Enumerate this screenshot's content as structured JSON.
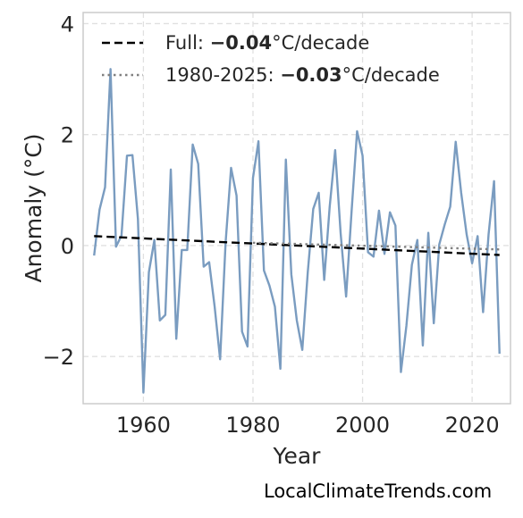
{
  "chart_data": {
    "type": "line",
    "xlabel": "Year",
    "ylabel": "Anomaly (°C)",
    "xlim": [
      1949,
      2027
    ],
    "ylim": [
      -2.85,
      4.2
    ],
    "x_ticks": [
      1960,
      1980,
      2000,
      2020
    ],
    "y_ticks": [
      4,
      2,
      0,
      -2
    ],
    "y_tick_labels": [
      "4",
      "2",
      "0",
      "−2"
    ],
    "grid": true,
    "legend_position": "top-left",
    "series": [
      {
        "style": "solid",
        "color": "#7a9cc0",
        "x": [
          1951,
          1952,
          1953,
          1954,
          1955,
          1956,
          1957,
          1958,
          1959,
          1960,
          1961,
          1962,
          1963,
          1964,
          1965,
          1966,
          1967,
          1968,
          1969,
          1970,
          1971,
          1972,
          1973,
          1974,
          1975,
          1976,
          1977,
          1978,
          1979,
          1980,
          1981,
          1982,
          1983,
          1984,
          1985,
          1986,
          1987,
          1988,
          1989,
          1990,
          1991,
          1992,
          1993,
          1994,
          1995,
          1996,
          1997,
          1998,
          1999,
          2000,
          2001,
          2002,
          2003,
          2004,
          2005,
          2006,
          2007,
          2008,
          2009,
          2010,
          2011,
          2012,
          2013,
          2014,
          2015,
          2016,
          2017,
          2018,
          2019,
          2020,
          2021,
          2022,
          2023,
          2024,
          2025
        ],
        "values": [
          -0.18,
          0.65,
          1.05,
          3.18,
          -0.02,
          0.18,
          1.62,
          1.63,
          0.48,
          -2.65,
          -0.48,
          0.1,
          -1.35,
          -1.25,
          1.37,
          -1.68,
          -0.08,
          -0.08,
          1.82,
          1.47,
          -0.38,
          -0.3,
          -1.1,
          -2.05,
          0.05,
          1.4,
          0.9,
          -1.55,
          -1.82,
          1.22,
          1.88,
          -0.45,
          -0.72,
          -1.1,
          -2.22,
          1.55,
          -0.52,
          -1.35,
          -1.88,
          -0.48,
          0.66,
          0.95,
          -0.62,
          0.7,
          1.72,
          0.22,
          -0.92,
          0.62,
          2.06,
          1.62,
          -0.12,
          -0.2,
          0.63,
          -0.15,
          0.6,
          0.36,
          -2.28,
          -1.45,
          -0.35,
          0.1,
          -1.8,
          0.23,
          -1.4,
          0.02,
          0.38,
          0.7,
          1.87,
          0.95,
          0.2,
          -0.32,
          0.17,
          -1.2,
          0.2,
          1.16,
          -1.95
        ]
      },
      {
        "name": "Full: −0.04°C/decade",
        "style": "dashed",
        "color": "#000000",
        "x": [
          1951,
          2025
        ],
        "values": [
          0.17,
          -0.17
        ]
      },
      {
        "name": "1980-2025: −0.03°C/decade",
        "style": "dotted",
        "color": "#808080",
        "x": [
          1980,
          2025
        ],
        "values": [
          0.05,
          -0.07
        ]
      }
    ],
    "legend": [
      {
        "prefix": "Full: ",
        "bold": "−0.04",
        "suffix": "°C/decade"
      },
      {
        "prefix": "1980-2025: ",
        "bold": "−0.03",
        "suffix": "°C/decade"
      }
    ]
  },
  "footer": {
    "text": "LocalClimateTrends.com"
  }
}
